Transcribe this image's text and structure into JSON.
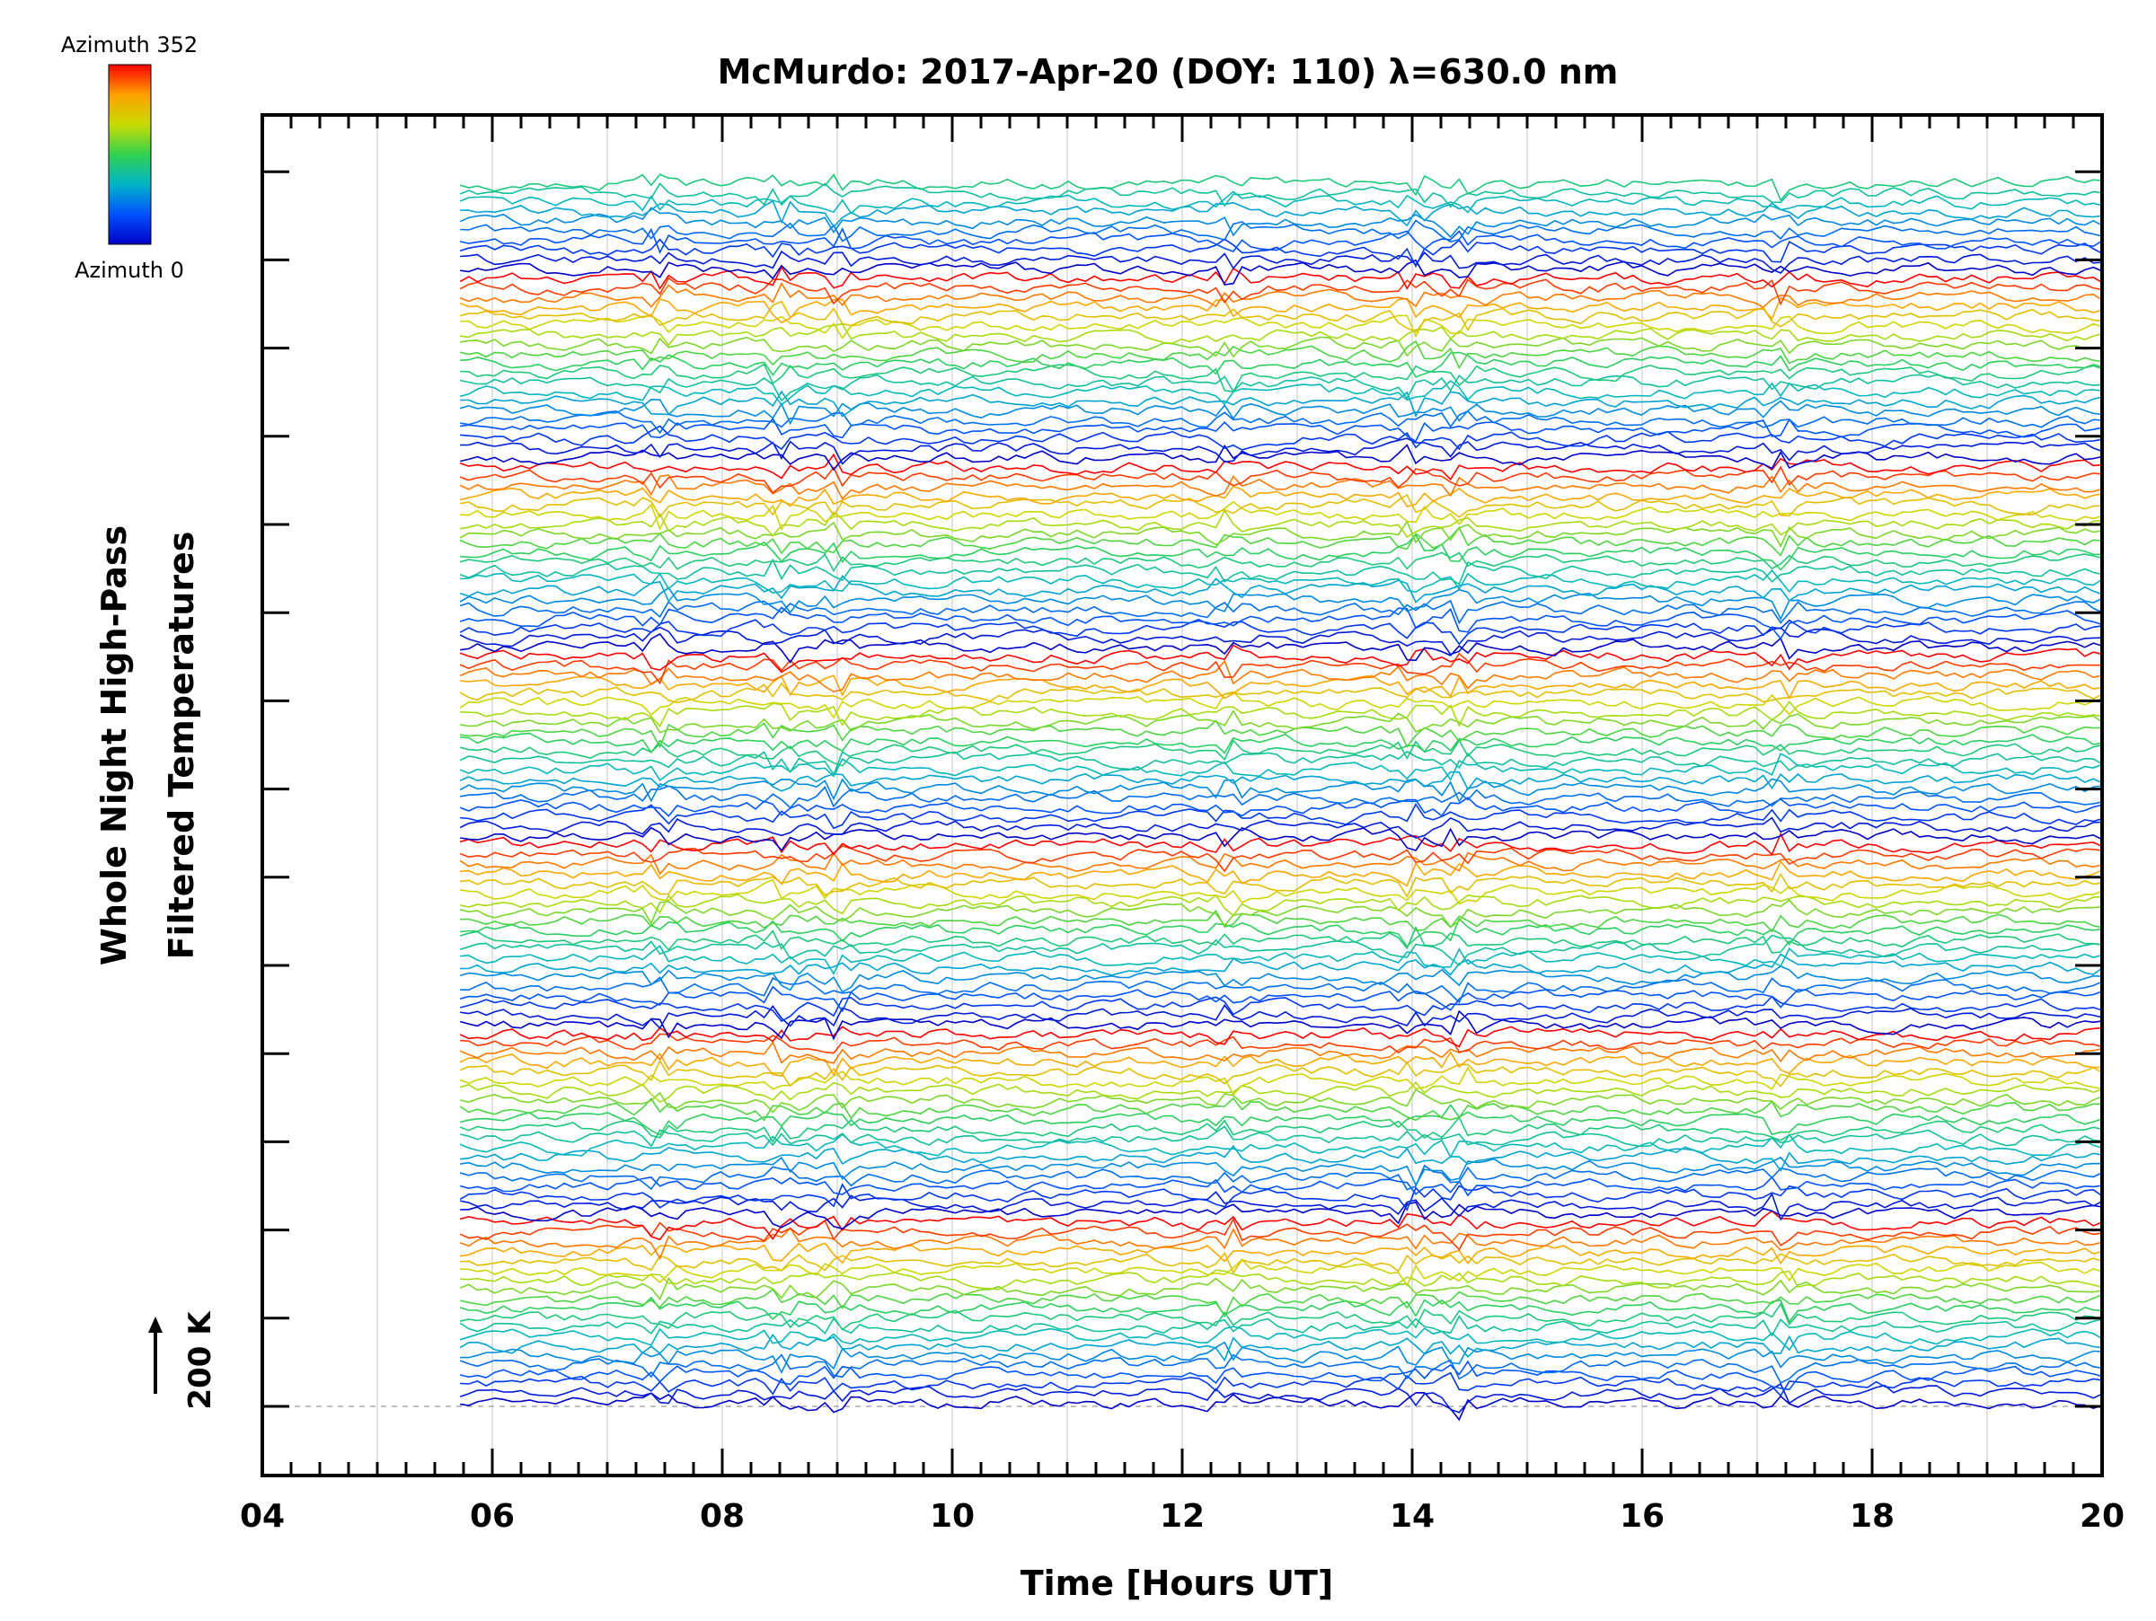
{
  "chart_data": {
    "type": "line",
    "title": "McMurdo: 2017-Apr-20 (DOY: 110) λ=630.0 nm",
    "xlabel": "Time [Hours UT]",
    "ylabel_line1": "Whole Night High-Pass",
    "ylabel_line2": "Filtered Temperatures",
    "scale_marker_label": "200 K",
    "colorbar": {
      "top_label": "Azimuth 352",
      "bottom_label": "Azimuth 0",
      "colors": [
        "#ff0000",
        "#ffa000",
        "#c8dc00",
        "#32d250",
        "#00b4c8",
        "#0050ff",
        "#0000c8"
      ]
    },
    "xlim": [
      4,
      20
    ],
    "x_tick_labels": [
      "04",
      "06",
      "08",
      "10",
      "12",
      "14",
      "16",
      "18",
      "20"
    ],
    "x_tick_values": [
      4,
      6,
      8,
      10,
      12,
      14,
      16,
      18,
      20
    ],
    "data_start_hour": 5.72,
    "data_end_hour": 20.0,
    "series_count": 130,
    "azimuth_cycle_length": 20,
    "azimuth_range": [
      0,
      352
    ],
    "grid_x": true,
    "baseline_dashed": true
  }
}
